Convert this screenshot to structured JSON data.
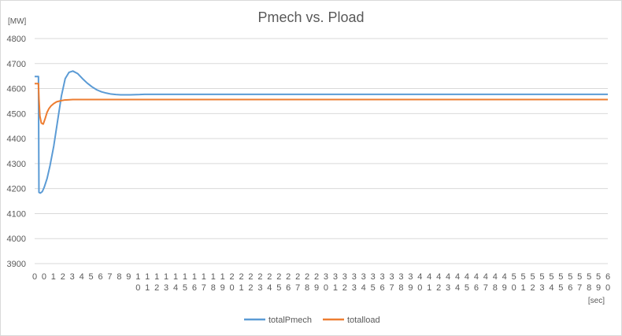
{
  "chart_data": {
    "type": "line",
    "title": "Pmech vs. Pload",
    "ylabel": "[MW]",
    "xlabel": "[sec]",
    "ylim": [
      3900,
      4800
    ],
    "yticks": [
      3900,
      4000,
      4100,
      4200,
      4300,
      4400,
      4500,
      4600,
      4700,
      4800
    ],
    "xlim": [
      0,
      60
    ],
    "xtick_top": [
      "0",
      "0",
      "1",
      "2",
      "3",
      "4",
      "5",
      "6",
      "7",
      "8",
      "9",
      "1",
      "1",
      "1",
      "1",
      "1",
      "1",
      "1",
      "1",
      "1",
      "1",
      "2",
      "2",
      "2",
      "2",
      "2",
      "2",
      "2",
      "2",
      "2",
      "2",
      "3",
      "3",
      "3",
      "3",
      "3",
      "3",
      "3",
      "3",
      "3",
      "3",
      "4",
      "4",
      "4",
      "4",
      "4",
      "4",
      "4",
      "4",
      "4",
      "4",
      "5",
      "5",
      "5",
      "5",
      "5",
      "5",
      "5",
      "5",
      "5",
      "5",
      "6"
    ],
    "xtick_bottom": [
      "",
      "",
      "",
      "",
      "",
      "",
      "",
      "",
      "",
      "",
      "",
      "0",
      "1",
      "2",
      "3",
      "4",
      "5",
      "6",
      "7",
      "8",
      "9",
      "0",
      "1",
      "2",
      "3",
      "4",
      "5",
      "6",
      "7",
      "8",
      "9",
      "0",
      "1",
      "2",
      "3",
      "4",
      "5",
      "6",
      "7",
      "8",
      "9",
      "0",
      "1",
      "2",
      "3",
      "4",
      "5",
      "6",
      "7",
      "8",
      "9",
      "0",
      "1",
      "2",
      "3",
      "4",
      "5",
      "6",
      "7",
      "8",
      "9",
      "0"
    ],
    "grid": "horizontal",
    "legend": "bottom",
    "series": [
      {
        "name": "totalPmech",
        "color": "#5b9bd5",
        "x": [
          0,
          0.4,
          0.45,
          0.6,
          0.8,
          1.0,
          1.3,
          1.6,
          2.0,
          2.4,
          2.8,
          3.2,
          3.6,
          4.0,
          4.5,
          5.0,
          5.5,
          6.0,
          6.5,
          7.0,
          7.5,
          8.0,
          8.5,
          9.0,
          10.0,
          11.0,
          11.5,
          15,
          20,
          30,
          40,
          50,
          60
        ],
        "y": [
          4648,
          4648,
          4185,
          4182,
          4188,
          4205,
          4240,
          4290,
          4370,
          4470,
          4570,
          4640,
          4665,
          4670,
          4660,
          4640,
          4622,
          4607,
          4595,
          4587,
          4582,
          4578,
          4576,
          4575,
          4575,
          4576,
          4577,
          4577,
          4577,
          4577,
          4577,
          4577,
          4577
        ]
      },
      {
        "name": "totalload",
        "color": "#ed7d31",
        "x": [
          0,
          0.4,
          0.45,
          0.55,
          0.7,
          0.9,
          1.1,
          1.3,
          1.5,
          1.7,
          2.0,
          2.3,
          2.7,
          3.1,
          3.5,
          4.0,
          5.0,
          10,
          20,
          30,
          40,
          50,
          60
        ],
        "y": [
          4620,
          4620,
          4560,
          4490,
          4462,
          4458,
          4480,
          4505,
          4520,
          4530,
          4540,
          4547,
          4551,
          4554,
          4555,
          4556,
          4556,
          4556,
          4556,
          4556,
          4556,
          4556,
          4556
        ]
      }
    ]
  }
}
